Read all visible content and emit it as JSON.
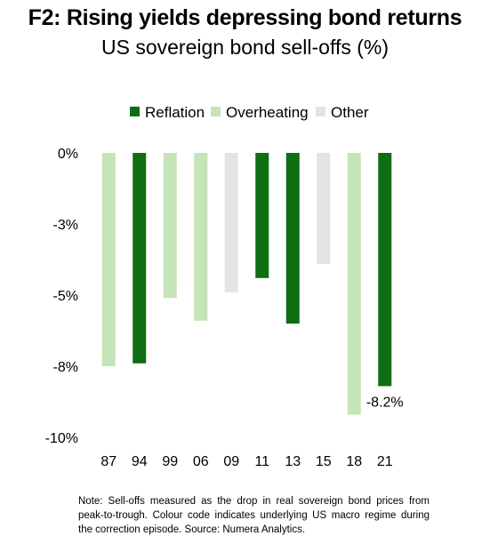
{
  "title": "F2: Rising yields depressing bond returns",
  "subtitle": "US sovereign bond sell-offs (%)",
  "chart_data": {
    "type": "bar",
    "categories": [
      "87",
      "94",
      "99",
      "06",
      "09",
      "11",
      "13",
      "15",
      "18",
      "21"
    ],
    "values": [
      -7.5,
      -7.4,
      -5.1,
      -5.9,
      -4.9,
      -4.4,
      -6.0,
      -3.9,
      -9.2,
      -8.2
    ],
    "regimes": [
      "Overheating",
      "Reflation",
      "Overheating",
      "Overheating",
      "Other",
      "Reflation",
      "Reflation",
      "Other",
      "Overheating",
      "Reflation"
    ],
    "legend": [
      {
        "name": "Reflation",
        "color": "#0e6e13"
      },
      {
        "name": "Overheating",
        "color": "#c5e4b8"
      },
      {
        "name": "Other",
        "color": "#e3e3e3"
      }
    ],
    "y_ticks": [
      {
        "value": 0,
        "label": "0%"
      },
      {
        "value": -2.5,
        "label": "-3%"
      },
      {
        "value": -5,
        "label": "-5%"
      },
      {
        "value": -7.5,
        "label": "-8%"
      },
      {
        "value": -10,
        "label": "-10%"
      }
    ],
    "ylim": [
      -10,
      0
    ],
    "annotation": {
      "category": "21",
      "label": "-8.2%"
    },
    "legend_position": "top",
    "grid": false
  },
  "note": "Note: Sell-offs measured as the drop in real sovereign bond prices from peak-to-trough. Colour code indicates underlying US macro regime during the correction episode. Source: Numera Analytics."
}
